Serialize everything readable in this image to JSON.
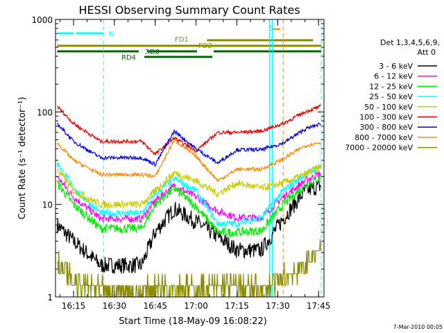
{
  "chart_data": {
    "type": "line",
    "title": "HESSI Observing Summary Count Rates",
    "xlabel": "Start Time (18-May-09 16:08:22)",
    "ylabel": "Count Rate (s⁻¹ detector⁻¹)",
    "y_scale": "log",
    "ylim": [
      1,
      1000
    ],
    "xlim": [
      "16:08:22",
      "17:47:00"
    ],
    "x_ticks": [
      "16:15",
      "16:30",
      "16:45",
      "17:00",
      "17:15",
      "17:30",
      "17:45"
    ],
    "y_ticks": [
      "1",
      "10",
      "100",
      "1000"
    ],
    "legend": {
      "header": [
        "Det 1,3,4,5,6,9,",
        "Att 0"
      ],
      "position": "right",
      "entries": [
        {
          "label": "3 - 6 keV",
          "color": "#000000"
        },
        {
          "label": "6 - 12 keV",
          "color": "#ff00ff"
        },
        {
          "label": "12 - 25 keV",
          "color": "#00ee00"
        },
        {
          "label": "25 - 50 keV",
          "color": "#00ffff"
        },
        {
          "label": "50 - 100 keV",
          "color": "#cccc00"
        },
        {
          "label": "100 - 300 keV",
          "color": "#ee0000"
        },
        {
          "label": "300 - 800 keV",
          "color": "#0000dd"
        },
        {
          "label": "800 - 7000 keV",
          "color": "#ff8800"
        },
        {
          "label": "7000 - 20000 keV",
          "color": "#8b8b00"
        }
      ]
    },
    "x_breakpoints": [
      "16:09",
      "16:15",
      "16:25",
      "16:40",
      "16:45",
      "16:52",
      "17:00",
      "17:08",
      "17:15",
      "17:24",
      "17:32",
      "17:40",
      "17:46"
    ],
    "series": [
      {
        "name": "3 - 6 keV",
        "color": "#000000",
        "values": [
          6,
          4,
          2.2,
          2.2,
          5,
          9,
          6.5,
          4.5,
          3.2,
          3.2,
          7,
          14,
          16
        ]
      },
      {
        "name": "6 - 12 keV",
        "color": "#ff00ff",
        "values": [
          20,
          12,
          7,
          7,
          11,
          16,
          12,
          8.5,
          7.2,
          7.2,
          12,
          18,
          22
        ]
      },
      {
        "name": "12 - 25 keV",
        "color": "#00ee00",
        "values": [
          17,
          10,
          5.5,
          5.5,
          10,
          15,
          9.5,
          5,
          5,
          5.2,
          10,
          16,
          20
        ]
      },
      {
        "name": "25 - 50 keV",
        "color": "#00ffff",
        "values": [
          28,
          15,
          8,
          8,
          13,
          19,
          14,
          6.2,
          6.2,
          7.2,
          14,
          21,
          26
        ]
      },
      {
        "name": "50 - 100 keV",
        "color": "#cccc00",
        "values": [
          24,
          14,
          10,
          10,
          14,
          22,
          18,
          13,
          17,
          15,
          17,
          21,
          26
        ]
      },
      {
        "name": "100 - 300 keV",
        "color": "#ee0000",
        "values": [
          115,
          75,
          48,
          48,
          35,
          52,
          38,
          60,
          60,
          62,
          75,
          100,
          115
        ]
      },
      {
        "name": "300 - 800 keV",
        "color": "#0000dd",
        "values": [
          75,
          48,
          32,
          32,
          27,
          62,
          40,
          28,
          39,
          39,
          46,
          65,
          75
        ]
      },
      {
        "name": "800 - 7000 keV",
        "color": "#ff8800",
        "values": [
          46,
          30,
          21,
          21,
          20,
          50,
          33,
          18,
          24,
          24,
          31,
          43,
          47
        ]
      },
      {
        "name": "7000 - 20000 keV",
        "color": "#8b8b00",
        "values": [
          2.5,
          1.4,
          1.2,
          1.1,
          1.3,
          1.3,
          1.2,
          1.3,
          1.3,
          1.2,
          1.6,
          2.2,
          3.5
        ]
      }
    ],
    "annotations": {
      "N": {
        "label": "N",
        "color": "#00ffff",
        "x_start": "16:09",
        "x_end": "16:26"
      },
      "S": {
        "label": "S",
        "color": "#ff8800",
        "x_start": "17:28",
        "x_end": "17:31"
      },
      "FD1": {
        "label": "FD1",
        "color": "#8b8b00",
        "x_start": "17:04",
        "x_end": "17:43"
      },
      "FD2": {
        "label": "FD2",
        "color": "#8b8b00",
        "x_start": "16:09",
        "x_end": "17:46"
      },
      "RD0": {
        "label": "RD0",
        "color": "#006600",
        "x_start": "16:09",
        "x_end": "17:46"
      },
      "RD4": {
        "label": "RD4",
        "color": "#006600",
        "x_start": "16:41",
        "x_end": "17:06"
      }
    },
    "vertical_markers": [
      {
        "time": "16:26",
        "color": "#00ffff",
        "style": "dashed"
      },
      {
        "time": "17:27",
        "color": "#00ffff",
        "style": "solid"
      },
      {
        "time": "17:28",
        "color": "#00ffff",
        "style": "solid"
      },
      {
        "time": "17:32",
        "color": "#ff8800",
        "style": "dashed"
      },
      {
        "time": "17:46",
        "color": "#00ffff",
        "style": "dashed"
      }
    ]
  },
  "footer": {
    "timestamp": "7-Mar-2010 00:05"
  }
}
